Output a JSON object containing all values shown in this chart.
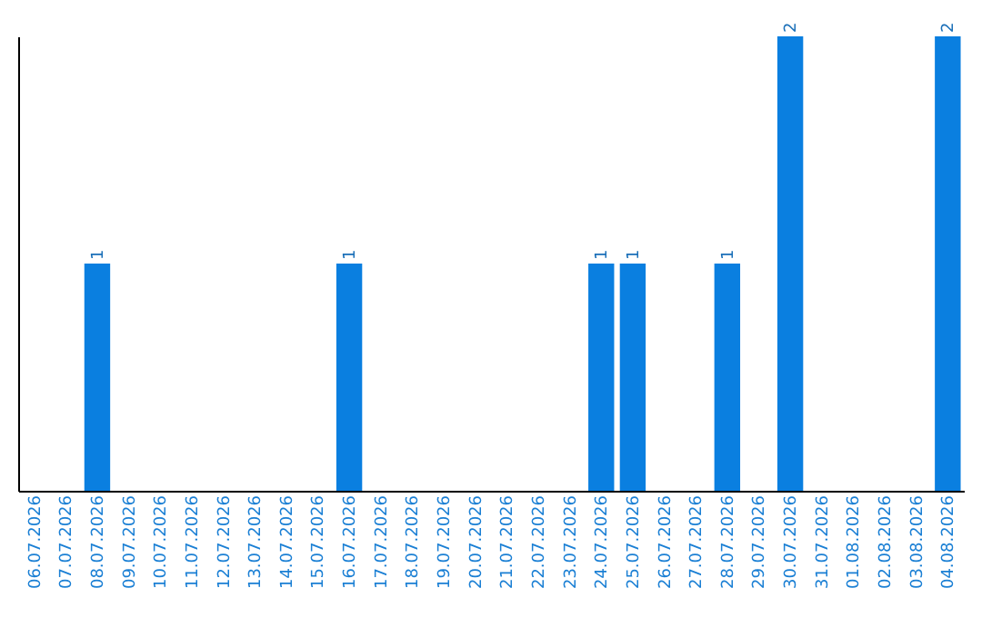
{
  "chart_data": {
    "type": "bar",
    "categories": [
      "06.07.2026",
      "07.07.2026",
      "08.07.2026",
      "09.07.2026",
      "10.07.2026",
      "11.07.2026",
      "12.07.2026",
      "13.07.2026",
      "14.07.2026",
      "15.07.2026",
      "16.07.2026",
      "17.07.2026",
      "18.07.2026",
      "19.07.2026",
      "20.07.2026",
      "21.07.2026",
      "22.07.2026",
      "23.07.2026",
      "24.07.2026",
      "25.07.2026",
      "26.07.2026",
      "27.07.2026",
      "28.07.2026",
      "29.07.2026",
      "30.07.2026",
      "31.07.2026",
      "01.08.2026",
      "02.08.2026",
      "03.08.2026",
      "04.08.2026"
    ],
    "values": [
      0,
      0,
      1,
      0,
      0,
      0,
      0,
      0,
      0,
      0,
      1,
      0,
      0,
      0,
      0,
      0,
      0,
      0,
      1,
      1,
      0,
      0,
      1,
      0,
      2,
      0,
      0,
      0,
      0,
      2
    ],
    "value_labels": [
      null,
      null,
      "1",
      null,
      null,
      null,
      null,
      null,
      null,
      null,
      "1",
      null,
      null,
      null,
      null,
      null,
      null,
      null,
      "1",
      "1",
      null,
      null,
      "1",
      null,
      "2",
      null,
      null,
      null,
      null,
      "2"
    ],
    "color": "#0a7fe0",
    "grid": false
  }
}
